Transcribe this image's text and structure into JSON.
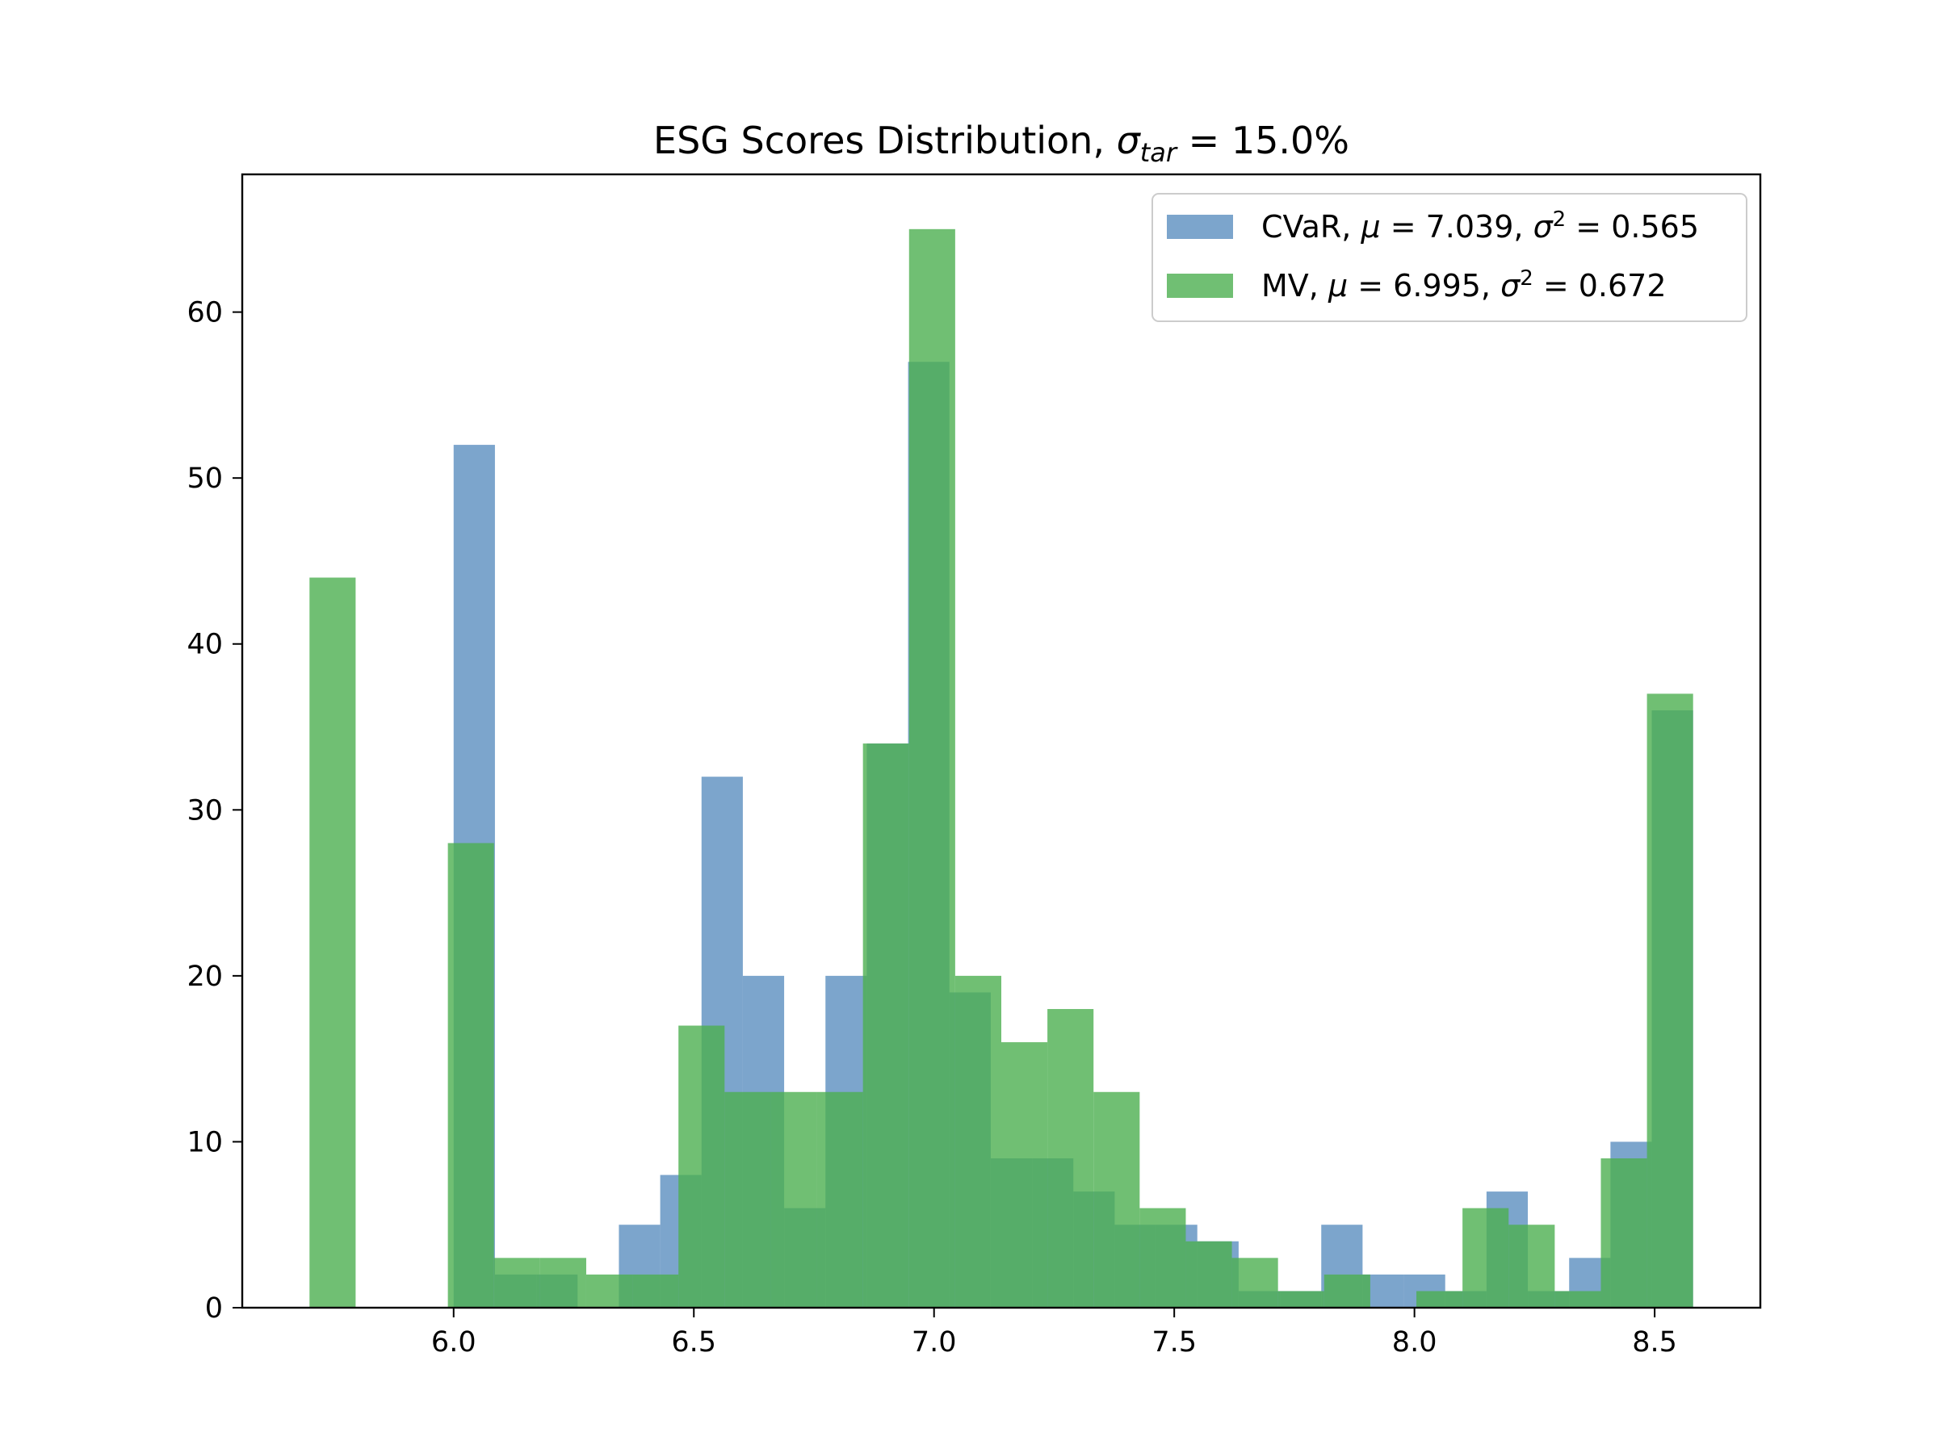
{
  "chart_data": {
    "type": "bar",
    "title": {
      "prefix": "ESG Scores Distribution, ",
      "symbol": "σ",
      "subscript": "tar",
      "suffix": " = 15.0%"
    },
    "xlabel": "",
    "ylabel": "",
    "xlim": [
      5.56,
      8.72
    ],
    "ylim": [
      0,
      68.3
    ],
    "x_ticks": [
      "6.0",
      "6.5",
      "7.0",
      "7.5",
      "8.0",
      "8.5"
    ],
    "y_ticks": [
      "0",
      "10",
      "20",
      "30",
      "40",
      "50",
      "60"
    ],
    "grid": false,
    "legend_position": "top-right",
    "series": [
      {
        "name": "CVaR",
        "legend_label": {
          "prefix": "CVaR, ",
          "mu": "μ",
          "mu_value": " = 7.039, ",
          "sigma": "σ",
          "sup": "2",
          "sigma_value": " = 0.565"
        },
        "color": "#5b8fbf",
        "bins": [
          {
            "x0": 6.0,
            "x1": 6.086,
            "count": 52
          },
          {
            "x0": 6.086,
            "x1": 6.172,
            "count": 2
          },
          {
            "x0": 6.172,
            "x1": 6.258,
            "count": 2
          },
          {
            "x0": 6.344,
            "x1": 6.43,
            "count": 5
          },
          {
            "x0": 6.43,
            "x1": 6.516,
            "count": 8
          },
          {
            "x0": 6.516,
            "x1": 6.602,
            "count": 32
          },
          {
            "x0": 6.602,
            "x1": 6.688,
            "count": 20
          },
          {
            "x0": 6.688,
            "x1": 6.774,
            "count": 6
          },
          {
            "x0": 6.774,
            "x1": 6.86,
            "count": 20
          },
          {
            "x0": 6.86,
            "x1": 6.946,
            "count": 34
          },
          {
            "x0": 6.946,
            "x1": 7.032,
            "count": 57
          },
          {
            "x0": 7.032,
            "x1": 7.118,
            "count": 19
          },
          {
            "x0": 7.118,
            "x1": 7.204,
            "count": 9
          },
          {
            "x0": 7.204,
            "x1": 7.29,
            "count": 9
          },
          {
            "x0": 7.29,
            "x1": 7.376,
            "count": 7
          },
          {
            "x0": 7.376,
            "x1": 7.462,
            "count": 5
          },
          {
            "x0": 7.462,
            "x1": 7.548,
            "count": 5
          },
          {
            "x0": 7.548,
            "x1": 7.634,
            "count": 4
          },
          {
            "x0": 7.634,
            "x1": 7.72,
            "count": 1
          },
          {
            "x0": 7.72,
            "x1": 7.806,
            "count": 1
          },
          {
            "x0": 7.806,
            "x1": 7.892,
            "count": 5
          },
          {
            "x0": 7.892,
            "x1": 7.978,
            "count": 2
          },
          {
            "x0": 7.978,
            "x1": 8.064,
            "count": 2
          },
          {
            "x0": 8.064,
            "x1": 8.15,
            "count": 1
          },
          {
            "x0": 8.15,
            "x1": 8.236,
            "count": 7
          },
          {
            "x0": 8.236,
            "x1": 8.322,
            "count": 1
          },
          {
            "x0": 8.322,
            "x1": 8.408,
            "count": 3
          },
          {
            "x0": 8.408,
            "x1": 8.494,
            "count": 10
          },
          {
            "x0": 8.494,
            "x1": 8.58,
            "count": 36
          }
        ]
      },
      {
        "name": "MV",
        "legend_label": {
          "prefix": "MV, ",
          "mu": "μ",
          "mu_value": " = 6.995, ",
          "sigma": "σ",
          "sup": "2",
          "sigma_value": " = 0.672"
        },
        "color": "#4caf50",
        "bins": [
          {
            "x0": 5.7,
            "x1": 5.796,
            "count": 44
          },
          {
            "x0": 5.988,
            "x1": 6.084,
            "count": 28
          },
          {
            "x0": 6.084,
            "x1": 6.18,
            "count": 3
          },
          {
            "x0": 6.18,
            "x1": 6.276,
            "count": 3
          },
          {
            "x0": 6.276,
            "x1": 6.372,
            "count": 2
          },
          {
            "x0": 6.372,
            "x1": 6.468,
            "count": 2
          },
          {
            "x0": 6.468,
            "x1": 6.564,
            "count": 17
          },
          {
            "x0": 6.564,
            "x1": 6.66,
            "count": 13
          },
          {
            "x0": 6.66,
            "x1": 6.756,
            "count": 13
          },
          {
            "x0": 6.756,
            "x1": 6.852,
            "count": 13
          },
          {
            "x0": 6.852,
            "x1": 6.948,
            "count": 34
          },
          {
            "x0": 6.948,
            "x1": 7.044,
            "count": 65
          },
          {
            "x0": 7.044,
            "x1": 7.14,
            "count": 20
          },
          {
            "x0": 7.14,
            "x1": 7.236,
            "count": 16
          },
          {
            "x0": 7.236,
            "x1": 7.332,
            "count": 18
          },
          {
            "x0": 7.332,
            "x1": 7.428,
            "count": 13
          },
          {
            "x0": 7.428,
            "x1": 7.524,
            "count": 6
          },
          {
            "x0": 7.524,
            "x1": 7.62,
            "count": 4
          },
          {
            "x0": 7.62,
            "x1": 7.716,
            "count": 3
          },
          {
            "x0": 7.716,
            "x1": 7.812,
            "count": 1
          },
          {
            "x0": 7.812,
            "x1": 7.908,
            "count": 2
          },
          {
            "x0": 7.908,
            "x1": 8.004,
            "count": 0
          },
          {
            "x0": 8.004,
            "x1": 8.1,
            "count": 1
          },
          {
            "x0": 8.1,
            "x1": 8.196,
            "count": 6
          },
          {
            "x0": 8.196,
            "x1": 8.292,
            "count": 5
          },
          {
            "x0": 8.292,
            "x1": 8.388,
            "count": 1
          },
          {
            "x0": 8.388,
            "x1": 8.484,
            "count": 9
          },
          {
            "x0": 8.484,
            "x1": 8.58,
            "count": 37
          }
        ]
      }
    ]
  }
}
